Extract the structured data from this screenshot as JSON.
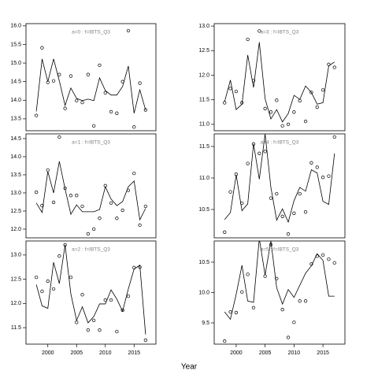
{
  "xlabel": "Year",
  "chart_data": [
    {
      "type": "line",
      "title": "a=0 : f=IBTS_Q3",
      "x": [
        1998,
        1999,
        2000,
        2001,
        2002,
        2003,
        2004,
        2005,
        2006,
        2007,
        2008,
        2009,
        2010,
        2011,
        2012,
        2013,
        2014,
        2015,
        2016,
        2017
      ],
      "series": [
        {
          "mode": "points",
          "color": "#000000",
          "values": [
            13.59,
            15.41,
            14.48,
            14.52,
            14.69,
            13.78,
            14.65,
            13.99,
            13.94,
            14.69,
            13.31,
            14.94,
            14.2,
            13.69,
            13.65,
            14.5,
            15.87,
            13.28,
            14.46,
            13.74
          ]
        },
        {
          "mode": "line",
          "color": "#000000",
          "values": [
            13.7,
            15.11,
            14.5,
            15.11,
            14.52,
            13.86,
            14.33,
            14.05,
            13.99,
            14.03,
            13.99,
            14.6,
            14.26,
            14.14,
            14.14,
            14.37,
            14.92,
            13.65,
            14.28,
            13.74
          ]
        }
      ],
      "xlim": [
        1996.2,
        2018.8
      ],
      "ylim": [
        13.18,
        16.06
      ],
      "yticks": [
        13.5,
        {
          "value": 14,
          "label": "14.0"
        },
        14.5,
        {
          "value": 15,
          "label": "15.0"
        },
        15.5,
        {
          "value": 16,
          "label": "16.0"
        }
      ]
    },
    {
      "type": "line",
      "title": "a=1 : f=IBTS_Q3",
      "x": [
        1998,
        1999,
        2000,
        2001,
        2002,
        2003,
        2004,
        2005,
        2006,
        2007,
        2008,
        2009,
        2010,
        2011,
        2012,
        2013,
        2014,
        2015,
        2016,
        2017
      ],
      "series": [
        {
          "mode": "points",
          "color": "#000000",
          "values": [
            13.02,
            12.65,
            13.63,
            12.74,
            14.54,
            13.13,
            12.93,
            12.93,
            12.63,
            11.87,
            12.0,
            12.3,
            13.2,
            12.72,
            12.3,
            12.52,
            13.07,
            13.54,
            12.11,
            12.63
          ]
        },
        {
          "mode": "line",
          "color": "#000000",
          "values": [
            12.72,
            12.46,
            13.59,
            13.0,
            13.87,
            13.11,
            12.41,
            12.67,
            12.48,
            12.48,
            12.48,
            12.54,
            13.17,
            12.83,
            12.65,
            12.76,
            13.17,
            13.33,
            12.26,
            12.57
          ]
        }
      ],
      "xlim": [
        1996.2,
        2018.8
      ],
      "ylim": [
        11.76,
        14.63
      ],
      "yticks": [
        {
          "value": 12,
          "label": "12.0"
        },
        12.5,
        {
          "value": 13,
          "label": "13.0"
        },
        13.5,
        {
          "value": 14,
          "label": "14.0"
        },
        14.5
      ]
    },
    {
      "type": "line",
      "title": "a=2 : f=IBTS_Q3",
      "x": [
        1998,
        1999,
        2000,
        2001,
        2002,
        2003,
        2004,
        2005,
        2006,
        2007,
        2008,
        2009,
        2010,
        2011,
        2012,
        2013,
        2014,
        2015,
        2016,
        2017
      ],
      "series": [
        {
          "mode": "points",
          "color": "#000000",
          "values": [
            12.54,
            12.25,
            12.46,
            12.3,
            12.98,
            13.21,
            12.54,
            11.61,
            12.18,
            11.45,
            11.65,
            11.45,
            12.07,
            12.07,
            11.42,
            11.86,
            12.15,
            12.74,
            12.75,
            11.24
          ]
        },
        {
          "mode": "line",
          "color": "#000000",
          "values": [
            12.39,
            11.95,
            11.9,
            12.85,
            12.41,
            13.21,
            12.2,
            11.65,
            11.93,
            11.6,
            11.73,
            11.99,
            11.99,
            12.28,
            12.09,
            11.84,
            12.3,
            12.71,
            12.79,
            11.36
          ]
        }
      ],
      "xlim": [
        1996.2,
        2018.8
      ],
      "ylim": [
        11.16,
        13.29
      ],
      "yticks": [
        11.5,
        {
          "value": 12,
          "label": "12.0"
        },
        12.5,
        {
          "value": 13,
          "label": "13.0"
        }
      ],
      "xticks": [
        2000,
        2005,
        2010,
        2015
      ]
    },
    {
      "type": "line",
      "title": "a=3 : f=IBTS_Q3",
      "x": [
        1998,
        1999,
        2000,
        2001,
        2002,
        2003,
        2004,
        2005,
        2006,
        2007,
        2008,
        2009,
        2010,
        2011,
        2012,
        2013,
        2014,
        2015,
        2016,
        2017
      ],
      "series": [
        {
          "mode": "points",
          "color": "#000000",
          "values": [
            11.44,
            11.73,
            11.67,
            11.44,
            12.73,
            11.89,
            12.9,
            11.32,
            11.25,
            11.49,
            10.97,
            11.0,
            11.25,
            11.48,
            11.06,
            11.65,
            11.35,
            11.7,
            12.22,
            12.16
          ]
        },
        {
          "mode": "line",
          "color": "#000000",
          "values": [
            11.46,
            11.9,
            11.3,
            11.41,
            12.41,
            11.75,
            12.67,
            11.52,
            11.11,
            11.3,
            11.05,
            11.22,
            11.59,
            11.51,
            11.78,
            11.65,
            11.41,
            11.44,
            12.19,
            12.27
          ]
        }
      ],
      "xlim": [
        1996.2,
        2018.8
      ],
      "ylim": [
        10.87,
        13.05
      ],
      "yticks": [
        {
          "value": 11,
          "label": "11.0"
        },
        11.5,
        {
          "value": 12,
          "label": "12.0"
        },
        12.5,
        {
          "value": 13,
          "label": "13.0"
        }
      ]
    },
    {
      "type": "line",
      "title": "a=4 : f=IBTS_Q3",
      "x": [
        1998,
        1999,
        2000,
        2001,
        2002,
        2003,
        2004,
        2005,
        2006,
        2007,
        2008,
        2009,
        2010,
        2011,
        2012,
        2013,
        2014,
        2015,
        2016,
        2017
      ],
      "series": [
        {
          "mode": "points",
          "color": "#000000",
          "values": [
            10.14,
            10.78,
            11.06,
            10.6,
            11.23,
            11.54,
            11.39,
            11.42,
            10.68,
            10.75,
            10.39,
            10.11,
            10.44,
            10.75,
            10.46,
            11.24,
            11.17,
            11.01,
            11.03,
            11.65
          ]
        },
        {
          "mode": "line",
          "color": "#000000",
          "values": [
            10.34,
            10.45,
            11.05,
            10.48,
            10.59,
            11.54,
            10.98,
            11.7,
            10.85,
            10.33,
            10.51,
            10.3,
            10.64,
            10.85,
            10.79,
            11.13,
            11.08,
            10.63,
            10.58,
            11.39
          ]
        }
      ],
      "xlim": [
        1996.2,
        2018.8
      ],
      "ylim": [
        10.05,
        11.7
      ],
      "yticks": [
        10.5,
        {
          "value": 11,
          "label": "11.0"
        },
        11.5
      ]
    },
    {
      "type": "line",
      "title": "a=5 : f=IBTS_Q3",
      "x": [
        1998,
        1999,
        2000,
        2001,
        2002,
        2003,
        2004,
        2005,
        2006,
        2007,
        2008,
        2009,
        2010,
        2011,
        2012,
        2013,
        2014,
        2015,
        2016,
        2017
      ],
      "series": [
        {
          "mode": "points",
          "color": "#000000",
          "values": [
            9.2,
            9.68,
            9.67,
            10.01,
            10.3,
            9.75,
            10.9,
            10.27,
            10.79,
            10.23,
            9.72,
            9.26,
            9.51,
            9.86,
            9.86,
            10.47,
            10.6,
            10.62,
            10.55,
            10.49
          ]
        },
        {
          "mode": "line",
          "color": "#000000",
          "values": [
            9.68,
            9.56,
            9.97,
            10.45,
            9.86,
            9.84,
            10.89,
            10.29,
            10.85,
            10.08,
            9.81,
            10.05,
            9.92,
            10.12,
            10.32,
            10.44,
            10.64,
            10.53,
            9.94,
            9.94
          ]
        }
      ],
      "xlim": [
        1996.2,
        2018.8
      ],
      "ylim": [
        9.15,
        10.85
      ],
      "yticks": [
        9.5,
        {
          "value": 10,
          "label": "10.0"
        },
        10.5
      ],
      "xticks": [
        2000,
        2005,
        2010,
        2015
      ]
    }
  ]
}
